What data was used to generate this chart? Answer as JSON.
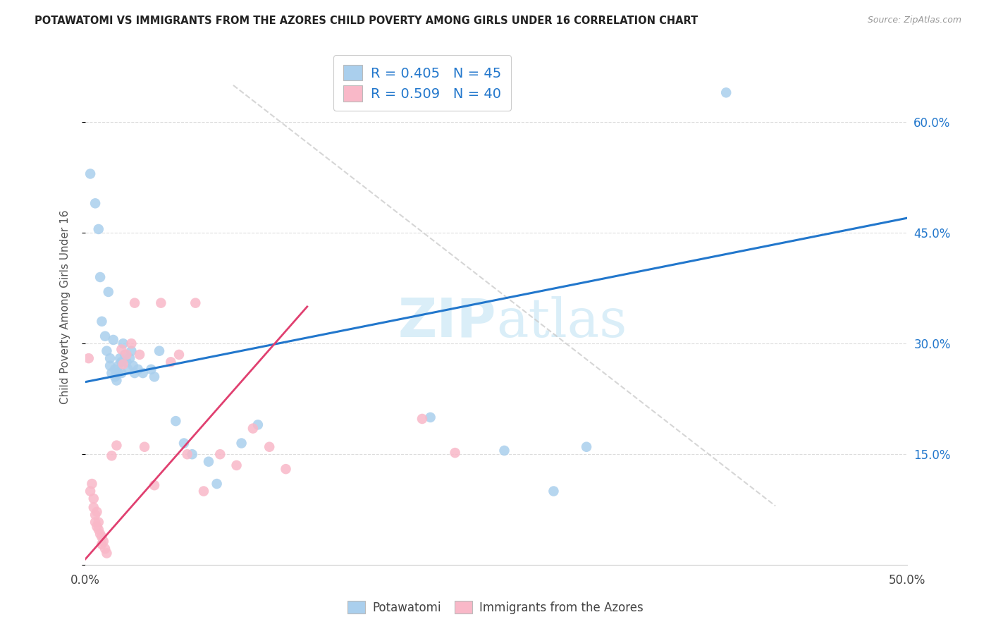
{
  "title": "POTAWATOMI VS IMMIGRANTS FROM THE AZORES CHILD POVERTY AMONG GIRLS UNDER 16 CORRELATION CHART",
  "source": "Source: ZipAtlas.com",
  "ylabel": "Child Poverty Among Girls Under 16",
  "xlim": [
    0.0,
    0.5
  ],
  "ylim": [
    0.0,
    0.7
  ],
  "yticks": [
    0.0,
    0.15,
    0.3,
    0.45,
    0.6
  ],
  "xticks": [
    0.0,
    0.1,
    0.2,
    0.3,
    0.4,
    0.5
  ],
  "legend_labels": [
    "Potawatomi",
    "Immigrants from the Azores"
  ],
  "blue_R": 0.405,
  "blue_N": 45,
  "pink_R": 0.509,
  "pink_N": 40,
  "blue_color": "#aacfed",
  "pink_color": "#f9b8c8",
  "blue_line_color": "#2277cc",
  "pink_line_color": "#e04070",
  "watermark_color": "#daeef8",
  "blue_points": [
    [
      0.003,
      0.53
    ],
    [
      0.006,
      0.49
    ],
    [
      0.008,
      0.455
    ],
    [
      0.009,
      0.39
    ],
    [
      0.01,
      0.33
    ],
    [
      0.012,
      0.31
    ],
    [
      0.013,
      0.29
    ],
    [
      0.014,
      0.37
    ],
    [
      0.015,
      0.28
    ],
    [
      0.015,
      0.27
    ],
    [
      0.016,
      0.26
    ],
    [
      0.017,
      0.305
    ],
    [
      0.018,
      0.265
    ],
    [
      0.018,
      0.255
    ],
    [
      0.019,
      0.25
    ],
    [
      0.02,
      0.27
    ],
    [
      0.02,
      0.26
    ],
    [
      0.021,
      0.28
    ],
    [
      0.022,
      0.275
    ],
    [
      0.022,
      0.26
    ],
    [
      0.023,
      0.3
    ],
    [
      0.024,
      0.285
    ],
    [
      0.025,
      0.275
    ],
    [
      0.026,
      0.265
    ],
    [
      0.027,
      0.28
    ],
    [
      0.028,
      0.29
    ],
    [
      0.029,
      0.27
    ],
    [
      0.03,
      0.26
    ],
    [
      0.032,
      0.265
    ],
    [
      0.035,
      0.26
    ],
    [
      0.04,
      0.265
    ],
    [
      0.042,
      0.255
    ],
    [
      0.045,
      0.29
    ],
    [
      0.055,
      0.195
    ],
    [
      0.06,
      0.165
    ],
    [
      0.065,
      0.15
    ],
    [
      0.075,
      0.14
    ],
    [
      0.08,
      0.11
    ],
    [
      0.095,
      0.165
    ],
    [
      0.105,
      0.19
    ],
    [
      0.21,
      0.2
    ],
    [
      0.255,
      0.155
    ],
    [
      0.285,
      0.1
    ],
    [
      0.305,
      0.16
    ],
    [
      0.39,
      0.64
    ]
  ],
  "pink_points": [
    [
      0.002,
      0.28
    ],
    [
      0.003,
      0.1
    ],
    [
      0.004,
      0.11
    ],
    [
      0.005,
      0.09
    ],
    [
      0.005,
      0.078
    ],
    [
      0.006,
      0.068
    ],
    [
      0.006,
      0.058
    ],
    [
      0.007,
      0.072
    ],
    [
      0.007,
      0.052
    ],
    [
      0.008,
      0.058
    ],
    [
      0.008,
      0.048
    ],
    [
      0.009,
      0.042
    ],
    [
      0.01,
      0.038
    ],
    [
      0.01,
      0.028
    ],
    [
      0.011,
      0.032
    ],
    [
      0.012,
      0.022
    ],
    [
      0.013,
      0.016
    ],
    [
      0.016,
      0.148
    ],
    [
      0.019,
      0.162
    ],
    [
      0.022,
      0.292
    ],
    [
      0.023,
      0.272
    ],
    [
      0.025,
      0.285
    ],
    [
      0.028,
      0.3
    ],
    [
      0.03,
      0.355
    ],
    [
      0.033,
      0.285
    ],
    [
      0.036,
      0.16
    ],
    [
      0.042,
      0.108
    ],
    [
      0.046,
      0.355
    ],
    [
      0.052,
      0.275
    ],
    [
      0.057,
      0.285
    ],
    [
      0.062,
      0.15
    ],
    [
      0.067,
      0.355
    ],
    [
      0.072,
      0.1
    ],
    [
      0.082,
      0.15
    ],
    [
      0.092,
      0.135
    ],
    [
      0.102,
      0.185
    ],
    [
      0.112,
      0.16
    ],
    [
      0.122,
      0.13
    ],
    [
      0.205,
      0.198
    ],
    [
      0.225,
      0.152
    ]
  ],
  "blue_line": [
    0.0,
    0.5,
    0.248,
    0.47
  ],
  "pink_line": [
    0.0,
    0.135,
    0.008,
    0.35
  ],
  "diag_line": [
    0.08,
    0.42,
    0.08,
    0.6
  ]
}
